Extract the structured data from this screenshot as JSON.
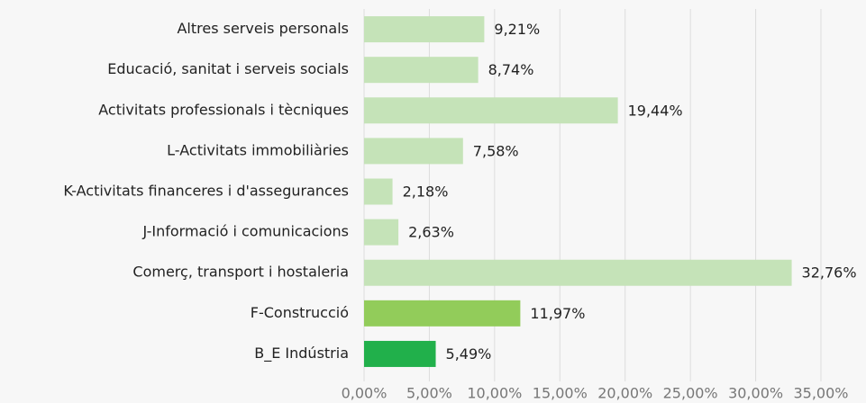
{
  "chart_data": {
    "type": "hbar",
    "categories": [
      "Altres serveis personals",
      "Educació, sanitat i serveis socials",
      "Activitats professionals i tècniques",
      "L-Activitats immobiliàries",
      "K-Activitats financeres i d'assegurances",
      "J-Informació i comunicacions",
      "Comerç, transport i hostaleria",
      "F-Construcció",
      "B_E Indústria"
    ],
    "values": [
      9.21,
      8.74,
      19.44,
      7.58,
      2.18,
      2.63,
      32.76,
      11.97,
      5.49
    ],
    "value_labels": [
      "9,21%",
      "8,74%",
      "19,44%",
      "7,58%",
      "2,18%",
      "2,63%",
      "32,76%",
      "11,97%",
      "5,49%"
    ],
    "colors": [
      "#c5e3b8",
      "#c5e3b8",
      "#c5e3b8",
      "#c5e3b8",
      "#c5e3b8",
      "#c5e3b8",
      "#c5e3b8",
      "#92cc5a",
      "#21b04b"
    ],
    "xlim": [
      0,
      35
    ],
    "xticks": [
      {
        "value": 0,
        "label": "0,00%"
      },
      {
        "value": 5,
        "label": "5,00%"
      },
      {
        "value": 10,
        "label": "10,00%"
      },
      {
        "value": 15,
        "label": "15,00%"
      },
      {
        "value": 20,
        "label": "20,00%"
      },
      {
        "value": 25,
        "label": "25,00%"
      },
      {
        "value": 30,
        "label": "30,00%"
      },
      {
        "value": 35,
        "label": "35,00%"
      }
    ],
    "grid": true
  }
}
